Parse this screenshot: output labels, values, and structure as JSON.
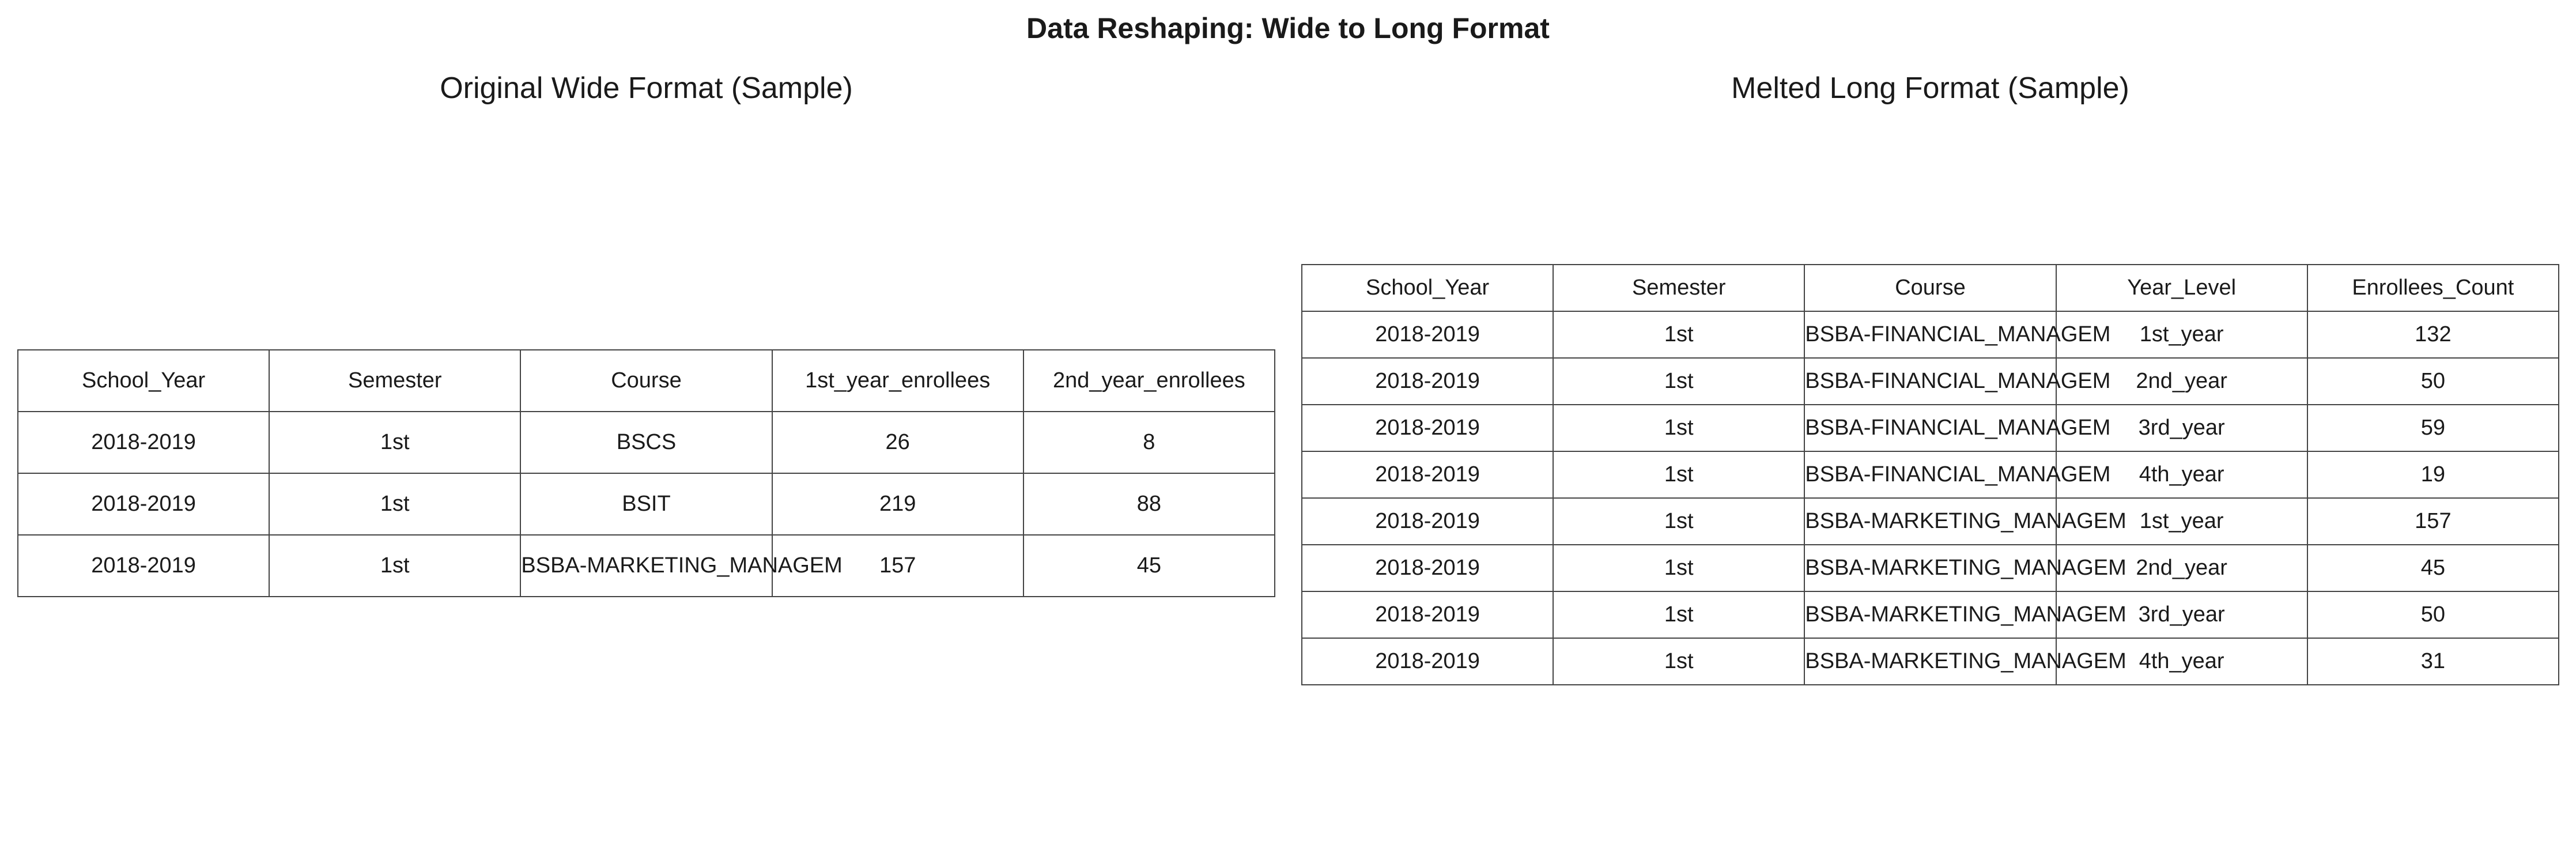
{
  "title": "Data Reshaping: Wide to Long Format",
  "wide_table": {
    "title": "Original Wide Format (Sample)",
    "columns": [
      "School_Year",
      "Semester",
      "Course",
      "1st_year_enrollees",
      "2nd_year_enrollees"
    ],
    "rows": [
      [
        "2018-2019",
        "1st",
        "BSCS",
        "26",
        "8"
      ],
      [
        "2018-2019",
        "1st",
        "BSIT",
        "219",
        "88"
      ],
      [
        "2018-2019",
        "1st",
        "BSBA-MARKETING_MANAGEM",
        "157",
        "45"
      ]
    ]
  },
  "long_table": {
    "title": "Melted Long Format (Sample)",
    "columns": [
      "School_Year",
      "Semester",
      "Course",
      "Year_Level",
      "Enrollees_Count"
    ],
    "rows": [
      [
        "2018-2019",
        "1st",
        "BSBA-FINANCIAL_MANAGEM",
        "1st_year",
        "132"
      ],
      [
        "2018-2019",
        "1st",
        "BSBA-FINANCIAL_MANAGEM",
        "2nd_year",
        "50"
      ],
      [
        "2018-2019",
        "1st",
        "BSBA-FINANCIAL_MANAGEM",
        "3rd_year",
        "59"
      ],
      [
        "2018-2019",
        "1st",
        "BSBA-FINANCIAL_MANAGEM",
        "4th_year",
        "19"
      ],
      [
        "2018-2019",
        "1st",
        "BSBA-MARKETING_MANAGEM",
        "1st_year",
        "157"
      ],
      [
        "2018-2019",
        "1st",
        "BSBA-MARKETING_MANAGEM",
        "2nd_year",
        "45"
      ],
      [
        "2018-2019",
        "1st",
        "BSBA-MARKETING_MANAGEM",
        "3rd_year",
        "50"
      ],
      [
        "2018-2019",
        "1st",
        "BSBA-MARKETING_MANAGEM",
        "4th_year",
        "31"
      ]
    ]
  },
  "chart_data": [
    {
      "type": "table",
      "title": "Original Wide Format (Sample)",
      "columns": [
        "School_Year",
        "Semester",
        "Course",
        "1st_year_enrollees",
        "2nd_year_enrollees"
      ],
      "rows": [
        [
          "2018-2019",
          "1st",
          "BSCS",
          26,
          8
        ],
        [
          "2018-2019",
          "1st",
          "BSIT",
          219,
          88
        ],
        [
          "2018-2019",
          "1st",
          "BSBA-MARKETING_MANAGEM",
          157,
          45
        ]
      ]
    },
    {
      "type": "table",
      "title": "Melted Long Format (Sample)",
      "columns": [
        "School_Year",
        "Semester",
        "Course",
        "Year_Level",
        "Enrollees_Count"
      ],
      "rows": [
        [
          "2018-2019",
          "1st",
          "BSBA-FINANCIAL_MANAGEM",
          "1st_year",
          132
        ],
        [
          "2018-2019",
          "1st",
          "BSBA-FINANCIAL_MANAGEM",
          "2nd_year",
          50
        ],
        [
          "2018-2019",
          "1st",
          "BSBA-FINANCIAL_MANAGEM",
          "3rd_year",
          59
        ],
        [
          "2018-2019",
          "1st",
          "BSBA-FINANCIAL_MANAGEM",
          "4th_year",
          19
        ],
        [
          "2018-2019",
          "1st",
          "BSBA-MARKETING_MANAGEM",
          "1st_year",
          157
        ],
        [
          "2018-2019",
          "1st",
          "BSBA-MARKETING_MANAGEM",
          "2nd_year",
          45
        ],
        [
          "2018-2019",
          "1st",
          "BSBA-MARKETING_MANAGEM",
          "3rd_year",
          50
        ],
        [
          "2018-2019",
          "1st",
          "BSBA-MARKETING_MANAGEM",
          "4th_year",
          31
        ]
      ]
    }
  ]
}
